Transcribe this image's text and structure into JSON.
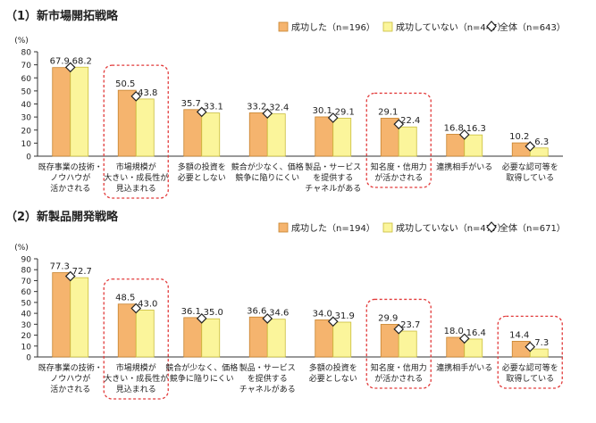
{
  "legend": {
    "series": [
      {
        "name": "成功した",
        "color": "#f5b46e",
        "stroke": "#c7842f"
      },
      {
        "name": "成功していない",
        "color": "#fbf59b",
        "stroke": "#c9bd3a"
      }
    ],
    "marker_color": "#222222"
  },
  "highlight_color": "#e23a3a",
  "chart_data": [
    {
      "type": "bar",
      "title": "（1）新市場開拓戦略",
      "ylabel": "(%)",
      "ylim": [
        0,
        80
      ],
      "yticks": [
        0,
        10,
        20,
        30,
        40,
        50,
        60,
        70,
        80
      ],
      "legend_labels": [
        "成功した（n=196）",
        "成功していない（n=447）",
        "全体（n=643）"
      ],
      "categories": [
        [
          "既存事業の技術・",
          "ノウハウが",
          "活かされる"
        ],
        [
          "市場規模が",
          "大きい・成長性が",
          "見込まれる"
        ],
        [
          "多額の投資を",
          "必要としない"
        ],
        [
          "競合が少なく、価格",
          "競争に陥りにくい"
        ],
        [
          "製品・サービス",
          "を提供する",
          "チャネルがある"
        ],
        [
          "知名度・信用力",
          "が活かされる"
        ],
        [
          "連携相手がいる"
        ],
        [
          "必要な認可等を",
          "取得している"
        ]
      ],
      "series": [
        {
          "name": "成功した",
          "values": [
            67.9,
            50.5,
            35.7,
            33.2,
            30.1,
            29.1,
            16.8,
            10.2
          ]
        },
        {
          "name": "成功していない",
          "values": [
            68.2,
            43.8,
            33.1,
            32.4,
            29.1,
            22.4,
            16.3,
            6.3
          ]
        }
      ],
      "overall": [
        68.1,
        45.9,
        33.9,
        32.7,
        29.4,
        24.5,
        16.5,
        7.5
      ],
      "highlighted": [
        1,
        5
      ]
    },
    {
      "type": "bar",
      "title": "（2）新製品開発戦略",
      "ylabel": "(%)",
      "ylim": [
        0,
        90
      ],
      "yticks": [
        0,
        10,
        20,
        30,
        40,
        50,
        60,
        70,
        80,
        90
      ],
      "legend_labels": [
        "成功した（n=194）",
        "成功していない（n=477）",
        "全体（n=671）"
      ],
      "categories": [
        [
          "既存事業の技術・",
          "ノウハウが",
          "活かされる"
        ],
        [
          "市場規模が",
          "大きい・成長性が",
          "見込まれる"
        ],
        [
          "競合が少なく、価格",
          "競争に陥りにくい"
        ],
        [
          "製品・サービス",
          "を提供する",
          "チャネルがある"
        ],
        [
          "多額の投資を",
          "必要としない"
        ],
        [
          "知名度・信用力",
          "が活かされる"
        ],
        [
          "連携相手がいる"
        ],
        [
          "必要な認可等を",
          "取得している"
        ]
      ],
      "series": [
        {
          "name": "成功した",
          "values": [
            77.3,
            48.5,
            36.1,
            36.6,
            34.0,
            29.9,
            18.0,
            14.4
          ]
        },
        {
          "name": "成功していない",
          "values": [
            72.7,
            43.0,
            35.0,
            34.6,
            31.9,
            23.7,
            16.4,
            7.3
          ]
        }
      ],
      "overall": [
        74.0,
        44.6,
        35.3,
        35.2,
        32.5,
        25.5,
        16.9,
        9.3
      ],
      "highlighted": [
        1,
        5,
        7
      ]
    }
  ]
}
